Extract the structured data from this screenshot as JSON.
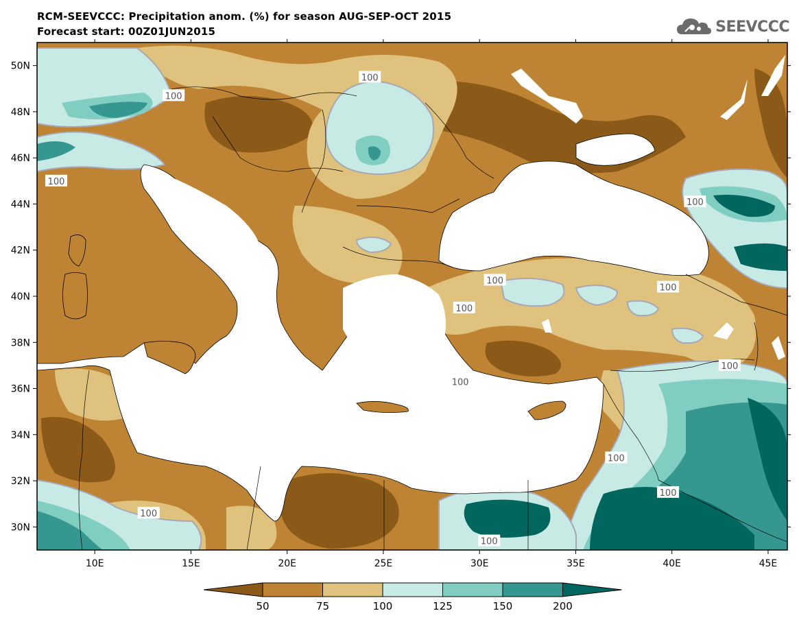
{
  "title_line1": "RCM-SEEVCCC: Precipitation anom. (%) for season AUG-SEP-OCT 2015",
  "title_line2": "Forecast start: 00Z01JUN2015",
  "logo_text": "SEEVCCC",
  "logo_icon": "cloud-icon",
  "map": {
    "lon_range": [
      7,
      46
    ],
    "lat_range": [
      29,
      51
    ],
    "lat_ticks": [
      {
        "value": 50,
        "label": "50N"
      },
      {
        "value": 48,
        "label": "48N"
      },
      {
        "value": 46,
        "label": "46N"
      },
      {
        "value": 44,
        "label": "44N"
      },
      {
        "value": 42,
        "label": "42N"
      },
      {
        "value": 40,
        "label": "40N"
      },
      {
        "value": 38,
        "label": "38N"
      },
      {
        "value": 36,
        "label": "36N"
      },
      {
        "value": 34,
        "label": "34N"
      },
      {
        "value": 32,
        "label": "32N"
      },
      {
        "value": 30,
        "label": "30N"
      }
    ],
    "lon_ticks": [
      {
        "value": 10,
        "label": "10E"
      },
      {
        "value": 15,
        "label": "15E"
      },
      {
        "value": 20,
        "label": "20E"
      },
      {
        "value": 25,
        "label": "25E"
      },
      {
        "value": 30,
        "label": "30E"
      },
      {
        "value": 35,
        "label": "35E"
      },
      {
        "value": 40,
        "label": "40E"
      },
      {
        "value": 45,
        "label": "45E"
      }
    ],
    "contour_labels": [
      {
        "text": "100",
        "lon": 24.3,
        "lat": 49.5
      },
      {
        "text": "100",
        "lon": 14.1,
        "lat": 48.7
      },
      {
        "text": "100",
        "lon": 8.0,
        "lat": 45.0
      },
      {
        "text": "100",
        "lon": 41.2,
        "lat": 44.1
      },
      {
        "text": "100",
        "lon": 30.8,
        "lat": 40.7
      },
      {
        "text": "100",
        "lon": 39.8,
        "lat": 40.4
      },
      {
        "text": "100",
        "lon": 29.2,
        "lat": 39.5
      },
      {
        "text": "100",
        "lon": 43.0,
        "lat": 37.0
      },
      {
        "text": "100",
        "lon": 29.0,
        "lat": 36.3
      },
      {
        "text": "100",
        "lon": 37.1,
        "lat": 33.0
      },
      {
        "text": "100",
        "lon": 39.8,
        "lat": 31.5
      },
      {
        "text": "100",
        "lon": 12.8,
        "lat": 30.6
      },
      {
        "text": "100",
        "lon": 30.5,
        "lat": 29.4
      }
    ]
  },
  "colorbar": {
    "levels": [
      "50",
      "75",
      "100",
      "125",
      "150",
      "200"
    ],
    "colors": [
      "#8c5a18",
      "#bf8433",
      "#dfc27d",
      "#c7eae5",
      "#80cdc1",
      "#35978f",
      "#01665e"
    ]
  },
  "colors": {
    "sea": "#ffffff",
    "land_dry": "#bf8433",
    "land_very_dry": "#8c5a18",
    "land_mild": "#dfc27d",
    "wet_light": "#c7eae5",
    "wet_mid": "#80cdc1",
    "wet_strong": "#35978f",
    "wet_max": "#01665e"
  }
}
